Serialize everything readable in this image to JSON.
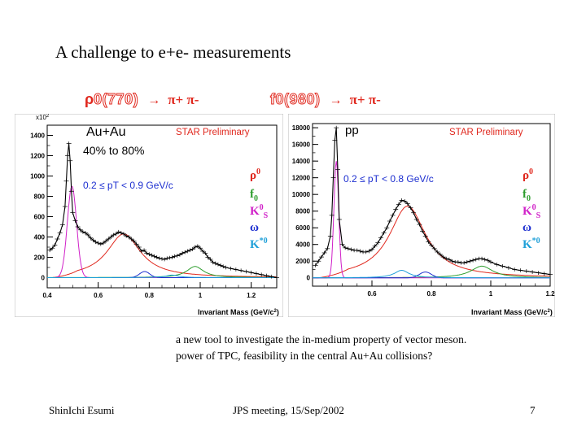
{
  "slide": {
    "title": "A challenge to e+e- measurements",
    "decays": [
      {
        "resonance_prefix": "ρ",
        "resonance": "0(770)",
        "arrow": "→",
        "products": "π+ π-"
      },
      {
        "resonance_prefix": "",
        "resonance": "f0(980)",
        "arrow": "→",
        "products": "π+ π-"
      }
    ],
    "caption_lines": [
      "a new tool to investigate the in-medium property of vector meson.",
      "power of TPC, feasibility in the central Au+Au collisions?"
    ],
    "footer": {
      "author": "ShinIchi Esumi",
      "meeting": "JPS meeting, 15/Sep/2002",
      "page": "7"
    }
  },
  "legend_labels": {
    "rho": {
      "base": "ρ",
      "sup": "0",
      "color": "#e0281e"
    },
    "f0": {
      "base": "f",
      "sub": "0",
      "color": "#2f9e2f"
    },
    "k0s": {
      "base": "K",
      "sup": "0",
      "sub": "S",
      "color": "#d020c8"
    },
    "omega": {
      "base": "ω",
      "color": "#1d2fd0"
    },
    "kstar": {
      "base": "K",
      "sup": "*0",
      "color": "#1fa0d8"
    }
  },
  "chart_data": [
    {
      "type": "line",
      "system": "Au+Au",
      "centrality": "40% to 80%",
      "pt_range": "0.2 ≤ pT < 0.9 GeV/c",
      "preliminary": "STAR Preliminary",
      "xlabel": "Invariant Mass (GeV/c",
      "xlabel_sup": "2",
      "xlabel_close": ")",
      "y_multiplier": "x10",
      "y_multiplier_sup": "2",
      "xlim": [
        0.4,
        1.3
      ],
      "ylim": [
        -100,
        1500
      ],
      "xticks": [
        0.4,
        0.6,
        0.8,
        1.0,
        1.2
      ],
      "xtick_labels": [
        "0.4",
        "0.6",
        "0.8",
        "1",
        "1.2"
      ],
      "yticks": [
        0,
        200,
        400,
        600,
        800,
        1000,
        1200,
        1400
      ],
      "ytick_labels": [
        "0",
        "200",
        "400",
        "600",
        "800",
        "1000",
        "1200",
        "1400"
      ],
      "data_points": {
        "x": [
          0.41,
          0.42,
          0.43,
          0.44,
          0.45,
          0.46,
          0.47,
          0.475,
          0.48,
          0.485,
          0.49,
          0.495,
          0.5,
          0.51,
          0.52,
          0.53,
          0.54,
          0.55,
          0.56,
          0.57,
          0.58,
          0.59,
          0.6,
          0.61,
          0.62,
          0.63,
          0.64,
          0.65,
          0.66,
          0.67,
          0.68,
          0.69,
          0.7,
          0.71,
          0.72,
          0.73,
          0.74,
          0.75,
          0.76,
          0.77,
          0.78,
          0.79,
          0.8,
          0.81,
          0.82,
          0.83,
          0.84,
          0.85,
          0.86,
          0.87,
          0.88,
          0.89,
          0.9,
          0.91,
          0.92,
          0.93,
          0.94,
          0.95,
          0.96,
          0.97,
          0.98,
          0.99,
          1.0,
          1.01,
          1.02,
          1.03,
          1.04,
          1.05,
          1.06,
          1.07,
          1.08,
          1.09,
          1.1,
          1.12,
          1.14,
          1.16,
          1.18,
          1.2,
          1.22,
          1.24,
          1.26,
          1.28,
          1.3
        ],
        "y": [
          270,
          290,
          320,
          380,
          440,
          520,
          700,
          950,
          1200,
          1320,
          1150,
          850,
          640,
          560,
          500,
          470,
          450,
          440,
          420,
          390,
          370,
          350,
          340,
          330,
          340,
          360,
          380,
          400,
          420,
          430,
          450,
          440,
          430,
          410,
          400,
          380,
          360,
          330,
          300,
          260,
          270,
          240,
          230,
          220,
          210,
          200,
          190,
          185,
          180,
          190,
          195,
          200,
          210,
          215,
          225,
          240,
          250,
          260,
          270,
          280,
          300,
          310,
          290,
          260,
          240,
          200,
          180,
          150,
          140,
          130,
          120,
          110,
          100,
          90,
          80,
          70,
          60,
          50,
          40,
          30,
          20,
          10,
          0
        ]
      },
      "fit_curves": [
        {
          "name": "total",
          "color": "#000000"
        },
        {
          "name": "rho0",
          "color": "#e0281e",
          "mass": 0.7,
          "width": 0.16,
          "amp": 430
        },
        {
          "name": "f0",
          "color": "#2f9e2f",
          "mass": 0.98,
          "width": 0.08,
          "amp": 110
        },
        {
          "name": "K0S",
          "color": "#d020c8",
          "mass": 0.497,
          "width": 0.018,
          "amp": 900
        },
        {
          "name": "omega",
          "color": "#1d2fd0",
          "mass": 0.782,
          "width": 0.02,
          "amp": 60
        },
        {
          "name": "K*0",
          "color": "#1fa0d8",
          "mass": 0.89,
          "width": 0.06,
          "amp": 25
        }
      ]
    },
    {
      "type": "line",
      "system": "pp",
      "pt_range": "0.2 ≤ pT < 0.8 GeV/c",
      "preliminary": "STAR Preliminary",
      "xlabel": "Invariant Mass (GeV/c",
      "xlabel_sup": "2",
      "xlabel_close": ")",
      "xlim": [
        0.4,
        1.2
      ],
      "ylim": [
        -1000,
        18500
      ],
      "xticks": [
        0.6,
        0.8,
        1.0,
        1.2
      ],
      "xtick_labels": [
        "0.6",
        "0.8",
        "1",
        "1.2"
      ],
      "yticks": [
        0,
        2000,
        4000,
        6000,
        8000,
        10000,
        12000,
        14000,
        16000,
        18000
      ],
      "ytick_labels": [
        "0",
        "2000",
        "4000",
        "6000",
        "8000",
        "10000",
        "12000",
        "14000",
        "16000",
        "18000"
      ],
      "data_points": {
        "x": [
          0.41,
          0.42,
          0.43,
          0.44,
          0.45,
          0.46,
          0.465,
          0.47,
          0.475,
          0.48,
          0.485,
          0.49,
          0.5,
          0.51,
          0.52,
          0.53,
          0.54,
          0.55,
          0.56,
          0.57,
          0.58,
          0.59,
          0.6,
          0.61,
          0.62,
          0.63,
          0.64,
          0.65,
          0.66,
          0.67,
          0.68,
          0.69,
          0.7,
          0.71,
          0.72,
          0.73,
          0.74,
          0.75,
          0.76,
          0.77,
          0.78,
          0.79,
          0.8,
          0.81,
          0.82,
          0.83,
          0.84,
          0.85,
          0.86,
          0.87,
          0.88,
          0.89,
          0.9,
          0.91,
          0.92,
          0.93,
          0.94,
          0.95,
          0.96,
          0.97,
          0.98,
          0.99,
          1.0,
          1.02,
          1.04,
          1.06,
          1.08,
          1.1,
          1.12,
          1.14,
          1.16,
          1.18,
          1.2
        ],
        "y": [
          1500,
          2000,
          2500,
          3000,
          3500,
          5000,
          7500,
          12000,
          16500,
          18000,
          13000,
          7000,
          4000,
          3600,
          3500,
          3400,
          3300,
          3300,
          3200,
          3100,
          3100,
          3200,
          3400,
          3800,
          4200,
          4800,
          5400,
          6000,
          6800,
          7500,
          8200,
          8800,
          9300,
          9200,
          8900,
          8400,
          7800,
          7000,
          6400,
          5600,
          5000,
          4300,
          3900,
          3500,
          3100,
          2800,
          2500,
          2300,
          2200,
          2000,
          1900,
          1900,
          1800,
          1800,
          1900,
          2000,
          2100,
          2200,
          2300,
          2300,
          2200,
          2100,
          1900,
          1600,
          1400,
          1200,
          1000,
          900,
          800,
          700,
          600,
          500,
          400
        ]
      },
      "fit_curves": [
        {
          "name": "total",
          "color": "#000000"
        },
        {
          "name": "rho0",
          "color": "#e0281e",
          "mass": 0.72,
          "width": 0.15,
          "amp": 8600
        },
        {
          "name": "f0",
          "color": "#2f9e2f",
          "mass": 0.97,
          "width": 0.09,
          "amp": 1400
        },
        {
          "name": "K0S",
          "color": "#d020c8",
          "mass": 0.48,
          "width": 0.008,
          "amp": 14000
        },
        {
          "name": "omega",
          "color": "#1d2fd0",
          "mass": 0.78,
          "width": 0.02,
          "amp": 700
        },
        {
          "name": "K*0",
          "color": "#1fa0d8",
          "mass": 0.7,
          "width": 0.06,
          "amp": 900
        }
      ]
    }
  ]
}
